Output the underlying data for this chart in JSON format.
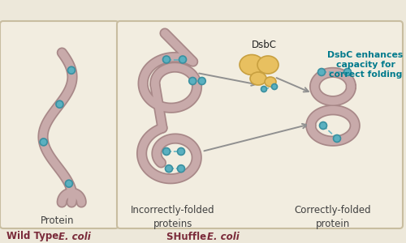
{
  "bg_color": "#ede8da",
  "box_bg": "#f2ede0",
  "box_border": "#c8bda0",
  "protein_color": "#c8aaaa",
  "protein_edge": "#a88888",
  "cys_color": "#5ab0c0",
  "cys_edge": "#3a90a0",
  "dsbc_fill": "#e8c060",
  "dsbc_edge": "#c8a040",
  "arrow_color": "#909090",
  "teal_text": "#007a8c",
  "dark_red": "#7a2a3a",
  "label_color": "#404040",
  "label_protein": "Protein",
  "label_incorrect": "Incorrectly-folded\nproteins",
  "label_correct": "Correctly-folded\nprotein",
  "label_dsbc": "DsbC",
  "text_dsbc_effect": "DsbC enhances\ncapacity for\ncorrect folding",
  "figsize": [
    5.0,
    3.0
  ],
  "dpi": 100
}
